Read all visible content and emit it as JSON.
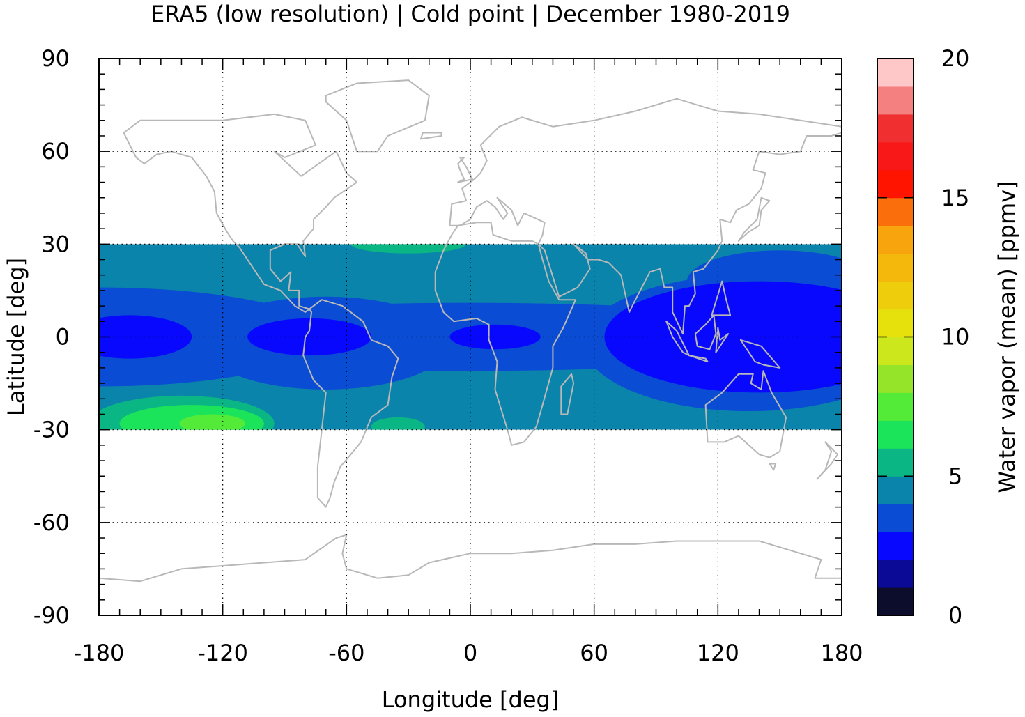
{
  "chart_data": {
    "type": "heatmap",
    "title": "ERA5 (low resolution) | Cold point | December 1980-2019",
    "xlabel": "Longitude [deg]",
    "ylabel": "Latitude [deg]",
    "xlim": [
      -180,
      180
    ],
    "ylim": [
      -90,
      90
    ],
    "x_ticks": [
      "-180",
      "-120",
      "-60",
      "0",
      "60",
      "120",
      "180"
    ],
    "y_ticks": [
      "90",
      "60",
      "30",
      "0",
      "-30",
      "-60",
      "-90"
    ],
    "grid": true,
    "data_lat_range": [
      -30,
      30
    ],
    "background_level": 4.5,
    "regions_desc_levels": "water vapor mean in ppmv by region",
    "regions": [
      {
        "level": 3.5,
        "shape": "ellipse",
        "lon": 0,
        "lat": 0,
        "rlon": 180,
        "rlat": 11
      },
      {
        "level": 3.5,
        "shape": "ellipse",
        "lon": -180,
        "lat": 0,
        "rlon": 110,
        "rlat": 16
      },
      {
        "level": 3.5,
        "shape": "ellipse",
        "lon": -70,
        "lat": -2,
        "rlon": 60,
        "rlat": 15
      },
      {
        "level": 3.5,
        "shape": "ellipse",
        "lon": 135,
        "lat": -2,
        "rlon": 80,
        "rlat": 22
      },
      {
        "level": 3.5,
        "shape": "ellipse",
        "lon": 150,
        "lat": 18,
        "rlon": 45,
        "rlat": 10
      },
      {
        "level": 2.5,
        "shape": "ellipse",
        "lon": -165,
        "lat": 0,
        "rlon": 30,
        "rlat": 7
      },
      {
        "level": 2.5,
        "shape": "ellipse",
        "lon": -78,
        "lat": 0,
        "rlon": 30,
        "rlat": 6
      },
      {
        "level": 2.5,
        "shape": "ellipse",
        "lon": 12,
        "lat": 0,
        "rlon": 22,
        "rlat": 4
      },
      {
        "level": 2.5,
        "shape": "ellipse",
        "lon": 140,
        "lat": 0,
        "rlon": 75,
        "rlat": 18
      },
      {
        "level": 5.5,
        "shape": "ellipse",
        "lon": -140,
        "lat": -28,
        "rlon": 45,
        "rlat": 9
      },
      {
        "level": 5.5,
        "shape": "ellipse",
        "lon": -35,
        "lat": -29,
        "rlon": 13,
        "rlat": 3
      },
      {
        "level": 5.5,
        "shape": "ellipse",
        "lon": -30,
        "lat": 30,
        "rlon": 28,
        "rlat": 3
      },
      {
        "level": 6.5,
        "shape": "ellipse",
        "lon": -135,
        "lat": -28,
        "rlon": 35,
        "rlat": 6
      },
      {
        "level": 7.5,
        "shape": "ellipse",
        "lon": -125,
        "lat": -28,
        "rlon": 16,
        "rlat": 3
      }
    ],
    "colorbar": {
      "label": "Water vapor (mean) [ppmv]",
      "min": 0,
      "max": 20,
      "step": 1,
      "tick_labels": [
        "0",
        "5",
        "10",
        "15",
        "20"
      ],
      "colors": [
        "#0c0c2c",
        "#0a0a96",
        "#0808ff",
        "#0a4cd4",
        "#0a84aa",
        "#0ab683",
        "#1ce45a",
        "#54ea38",
        "#96e42a",
        "#cce71c",
        "#e6e00c",
        "#eece0c",
        "#f4b70c",
        "#f8a40c",
        "#fb6e0c",
        "#ff1400",
        "#f81818",
        "#f03030",
        "#f48080",
        "#ffc8c8"
      ]
    },
    "coastline_color": "#b8b8b8"
  }
}
